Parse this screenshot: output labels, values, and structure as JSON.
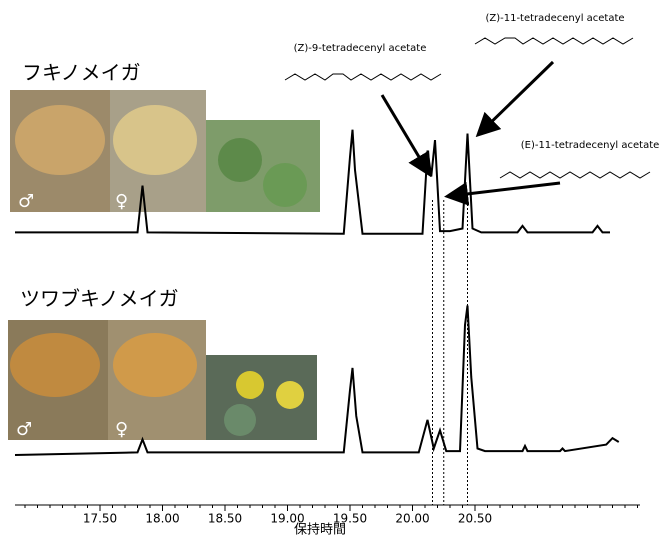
{
  "chart_data": {
    "type": "line",
    "xlabel": "保持時間",
    "xlim": [
      16.82,
      21.82
    ],
    "xticks": [
      {
        "value": 17.5,
        "label": "17.50"
      },
      {
        "value": 18.0,
        "label": "18.00"
      },
      {
        "value": 18.5,
        "label": "18.50"
      },
      {
        "value": 19.0,
        "label": "19.00"
      },
      {
        "value": 19.5,
        "label": "19.50"
      },
      {
        "value": 20.0,
        "label": "20.00"
      },
      {
        "value": 20.5,
        "label": "20.50"
      }
    ],
    "ylim": [
      0,
      120
    ],
    "markers": [
      20.16,
      20.25,
      20.44
    ],
    "male_symbol": "♂",
    "female_symbol": "♀",
    "annotations": [
      "(Z)-9-tetradecenyl acetate",
      "(Z)-11-tetradecenyl acetate",
      "(E)-11-tetradecenyl acetate"
    ],
    "series": [
      {
        "name": "フキノメイガ",
        "color": "#000000",
        "x": [
          16.82,
          17.8,
          17.84,
          17.88,
          19.45,
          19.5,
          19.52,
          19.54,
          19.6,
          20.08,
          20.12,
          20.15,
          20.18,
          20.22,
          20.3,
          20.4,
          20.44,
          20.48,
          20.55,
          20.84,
          20.88,
          20.92,
          21.44,
          21.48,
          21.52,
          21.58
        ],
        "values": [
          2,
          2,
          38,
          2,
          1,
          60,
          81,
          50,
          1,
          1,
          65,
          45,
          73,
          3,
          3,
          5,
          78,
          5,
          2,
          2,
          7,
          2,
          2,
          7,
          2,
          2
        ]
      },
      {
        "name": "ツワブキノメイガ",
        "color": "#000000",
        "x": [
          16.82,
          17.8,
          17.84,
          17.88,
          19.45,
          19.5,
          19.52,
          19.55,
          19.6,
          20.05,
          20.12,
          20.17,
          20.22,
          20.27,
          20.38,
          20.42,
          20.44,
          20.47,
          20.52,
          20.58,
          20.88,
          20.9,
          20.92,
          21.18,
          21.2,
          21.22,
          21.55,
          21.6,
          21.65
        ],
        "values": [
          0,
          2,
          12,
          2,
          2,
          50,
          67,
          30,
          2,
          2,
          27,
          5,
          19,
          3,
          3,
          100,
          115,
          60,
          5,
          3,
          3,
          7,
          3,
          3,
          5,
          3,
          8,
          13,
          10
        ]
      }
    ]
  }
}
